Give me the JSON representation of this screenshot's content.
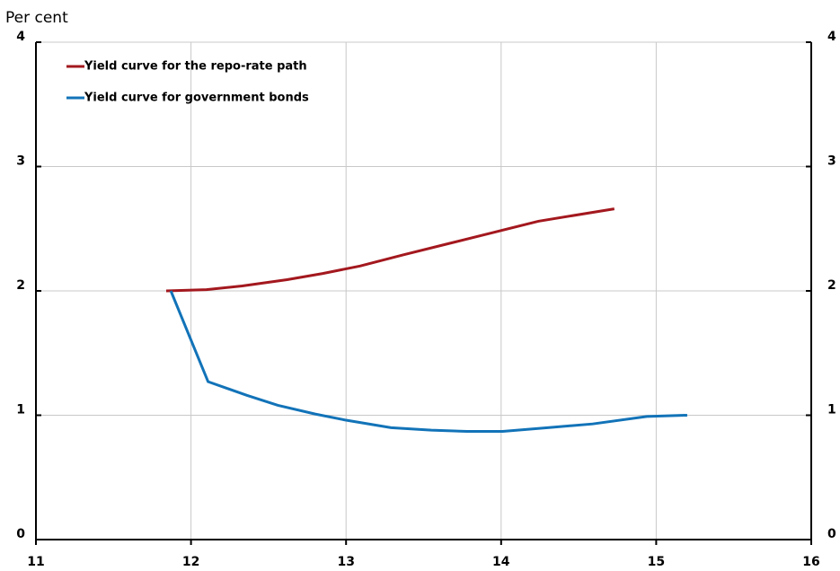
{
  "chart_data": {
    "type": "line",
    "y_label": "Per cent",
    "xlim": [
      11,
      16
    ],
    "xticks": [
      11,
      12,
      13,
      14,
      15,
      16
    ],
    "ylim": [
      0,
      4
    ],
    "yticks": [
      0,
      1,
      2,
      3,
      4
    ],
    "y2lim": [
      0,
      4
    ],
    "y2ticks": [
      0,
      1,
      2,
      3,
      4
    ],
    "grid": true,
    "legend": "upper left",
    "series": [
      {
        "name": "Yield curve for the repo-rate path",
        "color": "#a3181e",
        "x": [
          11.84,
          12.1,
          12.33,
          12.62,
          12.85,
          13.09,
          13.37,
          13.66,
          13.95,
          14.24,
          14.73
        ],
        "values": [
          2.0,
          2.01,
          2.04,
          2.09,
          2.14,
          2.2,
          2.29,
          2.38,
          2.47,
          2.56,
          2.66
        ]
      },
      {
        "name": "Yield curve for government bonds",
        "color": "#1273b8",
        "x": [
          11.87,
          12.11,
          12.36,
          12.56,
          12.8,
          13.0,
          13.29,
          13.55,
          13.78,
          14.01,
          14.3,
          14.59,
          14.94,
          15.2
        ],
        "values": [
          2.0,
          1.27,
          1.16,
          1.08,
          1.01,
          0.96,
          0.9,
          0.88,
          0.87,
          0.87,
          0.9,
          0.93,
          0.99,
          1.0
        ]
      }
    ]
  }
}
